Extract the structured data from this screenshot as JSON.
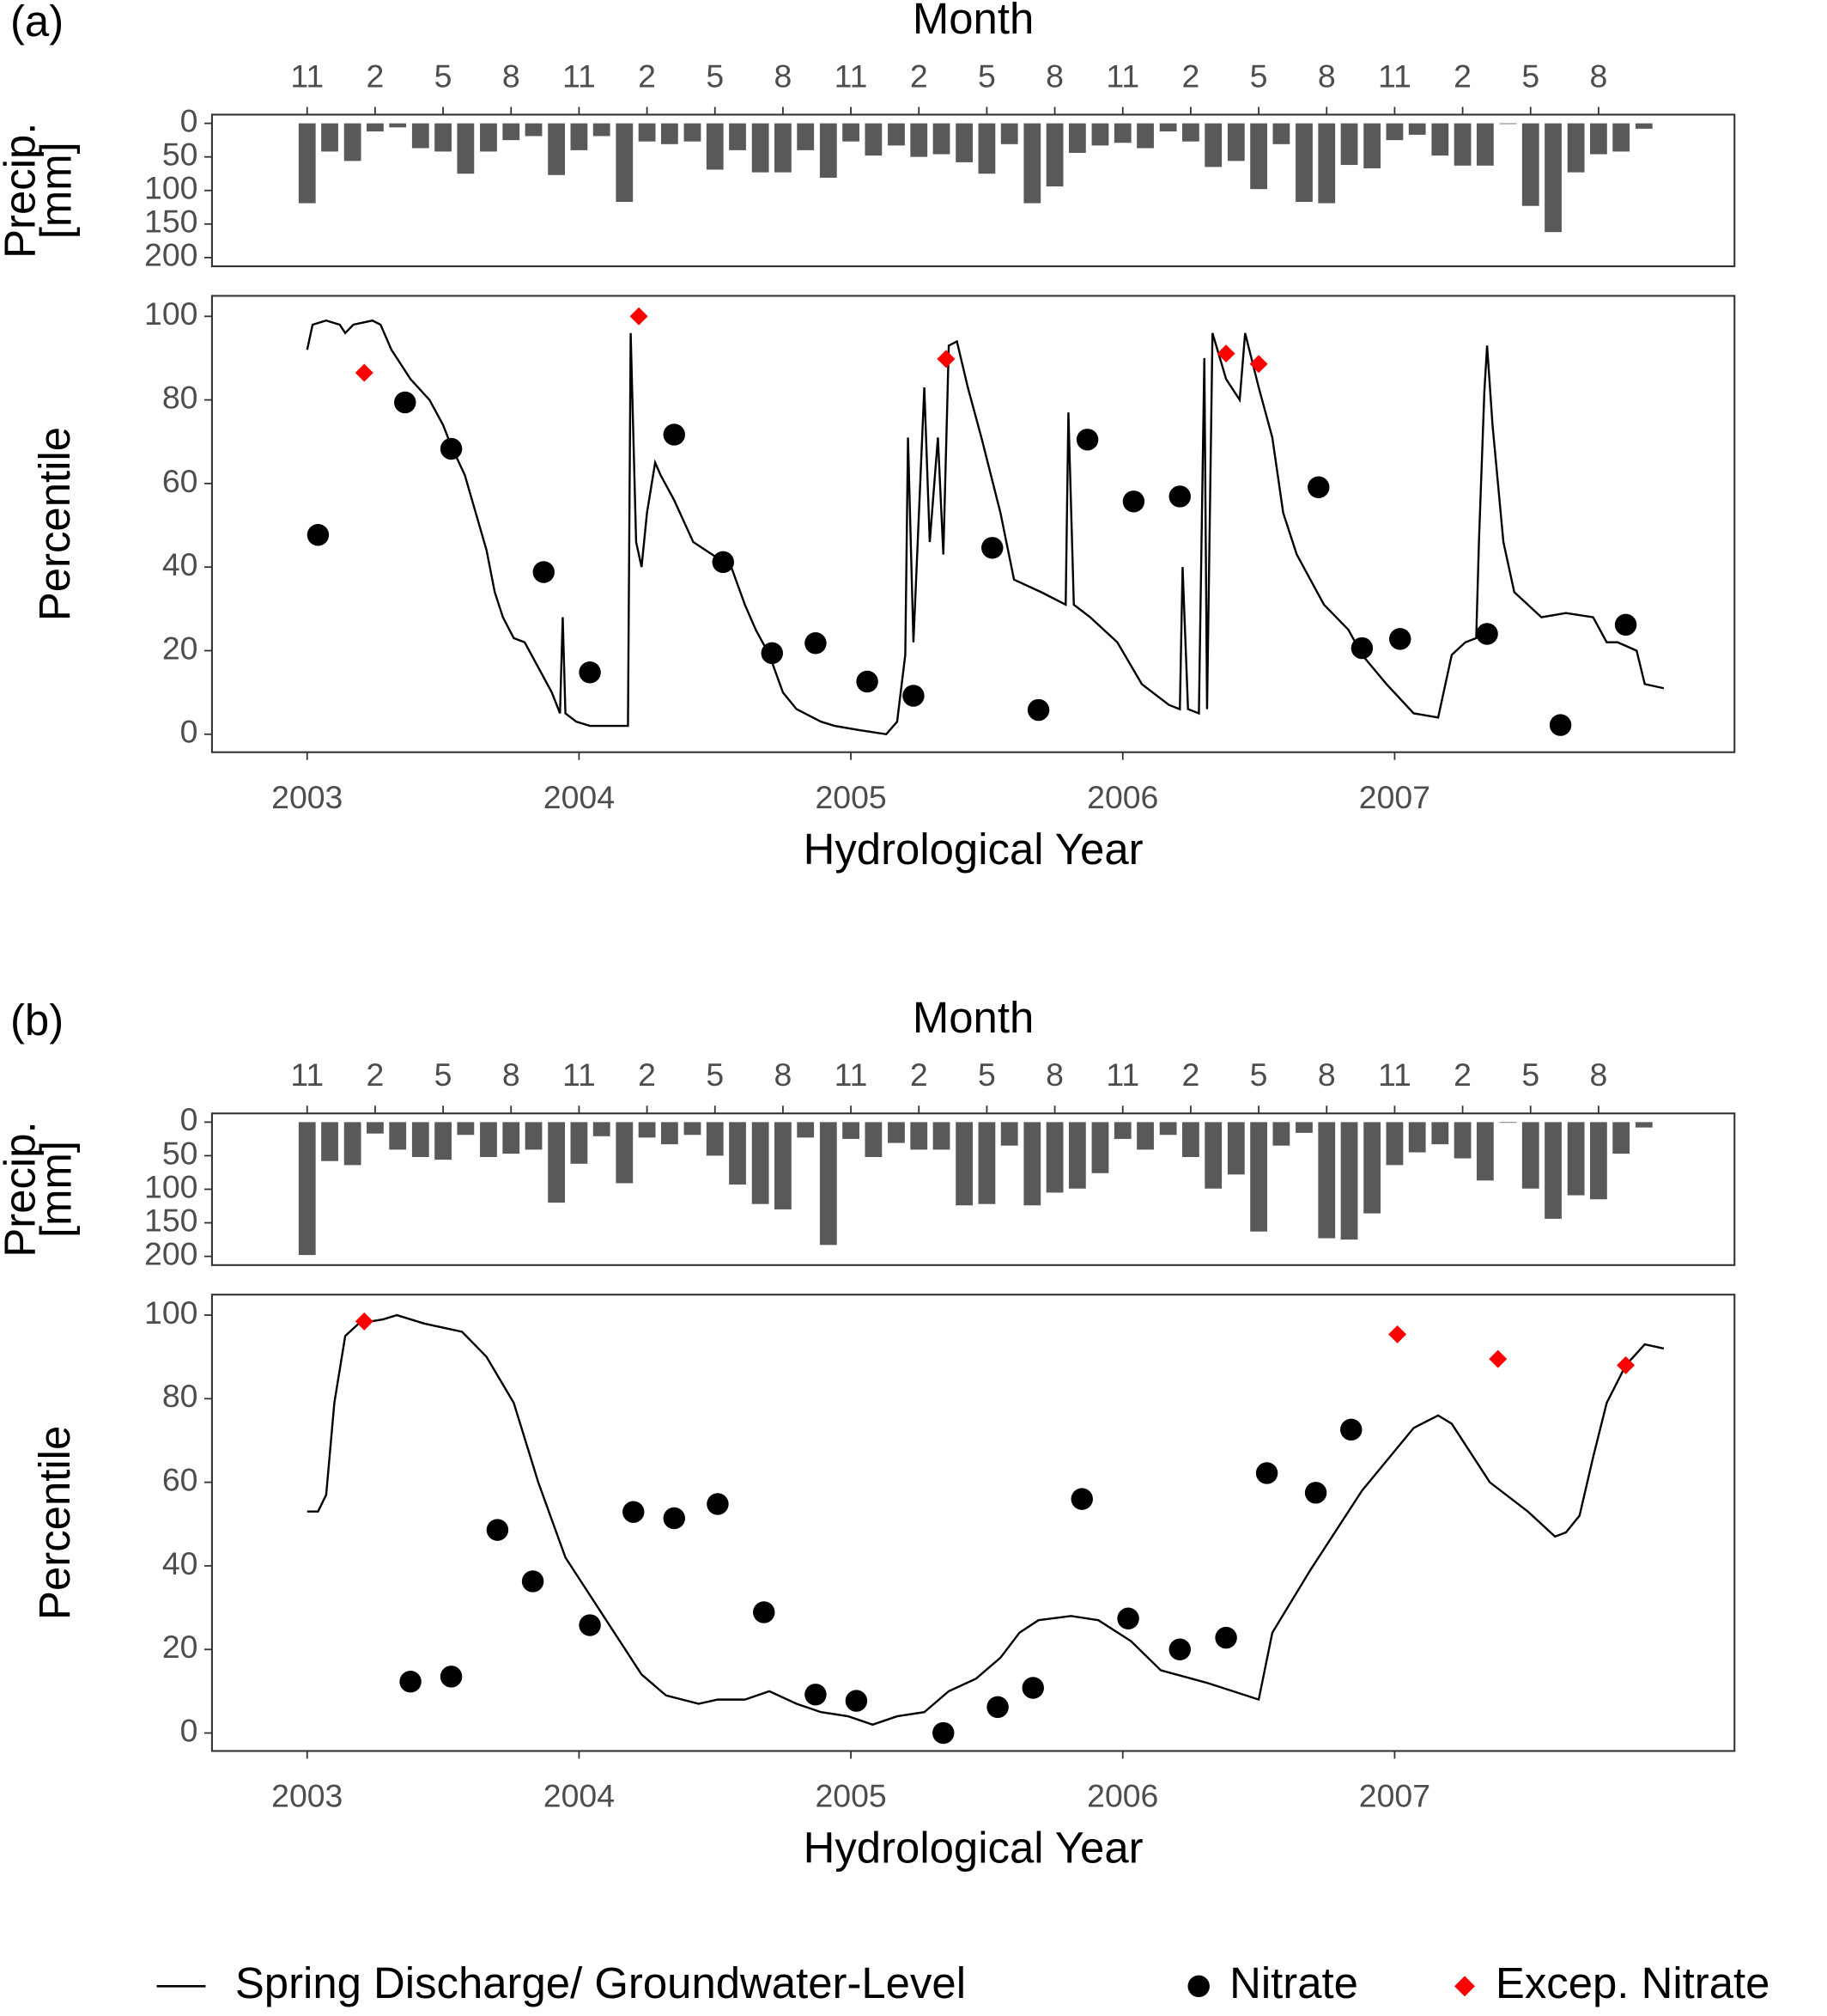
{
  "chart_data": [
    {
      "type": "bar",
      "panel": "(a)",
      "title": "Month",
      "ylabel": [
        "Precip.",
        "[mm]"
      ],
      "color": "#595959",
      "grid": false,
      "y_reversed": true,
      "xlim": [
        2002.65,
        2008.25
      ],
      "ylim": [
        -13,
        213
      ],
      "yticks": [
        0,
        50,
        100,
        150,
        200
      ],
      "xticks": [
        {
          "value": 2003,
          "label": "11"
        },
        {
          "value": 2003.25,
          "label": "2"
        },
        {
          "value": 2003.5,
          "label": "5"
        },
        {
          "value": 2003.75,
          "label": "8"
        },
        {
          "value": 2004,
          "label": "11"
        },
        {
          "value": 2004.25,
          "label": "2"
        },
        {
          "value": 2004.5,
          "label": "5"
        },
        {
          "value": 2004.75,
          "label": "8"
        },
        {
          "value": 2005,
          "label": "11"
        },
        {
          "value": 2005.25,
          "label": "2"
        },
        {
          "value": 2005.5,
          "label": "5"
        },
        {
          "value": 2005.75,
          "label": "8"
        },
        {
          "value": 2006,
          "label": "11"
        },
        {
          "value": 2006.25,
          "label": "2"
        },
        {
          "value": 2006.5,
          "label": "5"
        },
        {
          "value": 2006.75,
          "label": "8"
        },
        {
          "value": 2007,
          "label": "11"
        },
        {
          "value": 2007.25,
          "label": "2"
        },
        {
          "value": 2007.5,
          "label": "5"
        },
        {
          "value": 2007.75,
          "label": "8"
        }
      ],
      "x": [
        2003,
        2003.083,
        2003.167,
        2003.25,
        2003.333,
        2003.417,
        2003.5,
        2003.583,
        2003.667,
        2003.75,
        2003.833,
        2003.917,
        2004,
        2004.083,
        2004.167,
        2004.25,
        2004.333,
        2004.417,
        2004.5,
        2004.583,
        2004.667,
        2004.75,
        2004.833,
        2004.917,
        2005,
        2005.083,
        2005.167,
        2005.25,
        2005.333,
        2005.417,
        2005.5,
        2005.583,
        2005.667,
        2005.75,
        2005.833,
        2005.917,
        2006,
        2006.083,
        2006.167,
        2006.25,
        2006.333,
        2006.417,
        2006.5,
        2006.583,
        2006.667,
        2006.75,
        2006.833,
        2006.917,
        2007,
        2007.083,
        2007.167,
        2007.25,
        2007.333,
        2007.417,
        2007.5,
        2007.583,
        2007.667,
        2007.75,
        2007.833,
        2007.917
      ],
      "values": [
        119,
        42,
        56,
        12,
        6,
        37,
        42,
        75,
        42,
        25,
        19,
        77,
        40,
        19,
        117,
        27,
        31,
        27,
        69,
        40,
        73,
        73,
        40,
        81,
        27,
        48,
        33,
        50,
        46,
        58,
        75,
        31,
        119,
        94,
        44,
        33,
        29,
        37,
        12,
        27,
        65,
        56,
        98,
        31,
        117,
        119,
        62,
        67,
        25,
        17,
        48,
        63,
        63,
        1,
        123,
        162,
        73,
        46,
        42,
        8
      ]
    },
    {
      "type": "line",
      "xlabel": "Hydrological Year",
      "ylabel": "Percentile",
      "grid": false,
      "xlim": [
        2002.65,
        2008.25
      ],
      "ylim": [
        -4.3,
        104.9
      ],
      "yticks": [
        0,
        20,
        40,
        60,
        80,
        100
      ],
      "xticks": [
        2003,
        2004,
        2005,
        2006,
        2007
      ],
      "series": [
        {
          "name": "Spring Discharge/ Groundwater-Level",
          "type": "line",
          "color": "#000000",
          "x": [
            2003.0,
            2003.02,
            2003.07,
            2003.12,
            2003.14,
            2003.17,
            2003.24,
            2003.27,
            2003.31,
            2003.38,
            2003.45,
            2003.5,
            2003.53,
            2003.58,
            2003.62,
            2003.66,
            2003.69,
            2003.72,
            2003.76,
            2003.8,
            2003.85,
            2003.9,
            2003.93,
            2003.94,
            2003.95,
            2003.99,
            2004.04,
            2004.13,
            2004.18,
            2004.19,
            2004.21,
            2004.23,
            2004.25,
            2004.28,
            2004.3,
            2004.35,
            2004.42,
            2004.49,
            2004.56,
            2004.61,
            2004.65,
            2004.7,
            2004.75,
            2004.8,
            2004.89,
            2004.94,
            2005.03,
            2005.13,
            2005.17,
            2005.2,
            2005.21,
            2005.23,
            2005.27,
            2005.29,
            2005.32,
            2005.34,
            2005.36,
            2005.39,
            2005.43,
            2005.48,
            2005.55,
            2005.6,
            2005.7,
            2005.79,
            2005.8,
            2005.82,
            2005.88,
            2005.98,
            2006.07,
            2006.17,
            2006.21,
            2006.22,
            2006.24,
            2006.28,
            2006.3,
            2006.31,
            2006.33,
            2006.38,
            2006.43,
            2006.45,
            2006.5,
            2006.55,
            2006.59,
            2006.64,
            2006.74,
            2006.83,
            2006.88,
            2006.97,
            2007.07,
            2007.16,
            2007.18,
            2007.21,
            2007.26,
            2007.3,
            2007.31,
            2007.33,
            2007.34,
            2007.36,
            2007.4,
            2007.44,
            2007.49,
            2007.54,
            2007.63,
            2007.73,
            2007.78,
            2007.82,
            2007.89,
            2007.92,
            2007.99
          ],
          "values": [
            92,
            98,
            99,
            98,
            96,
            98,
            99,
            98,
            92,
            85,
            80,
            74,
            69,
            62,
            53,
            44,
            34,
            28,
            23,
            22,
            16,
            10,
            5,
            28,
            5,
            3,
            2,
            2,
            2,
            96,
            46,
            40,
            53,
            65,
            62,
            56,
            46,
            43,
            40,
            31,
            25,
            19,
            10,
            6,
            3,
            2,
            1,
            0,
            3,
            19,
            71,
            22,
            83,
            46,
            71,
            43,
            93,
            94,
            83,
            71,
            53,
            37,
            34,
            31,
            77,
            31,
            28,
            22,
            12,
            7,
            6,
            40,
            6,
            5,
            90,
            6,
            96,
            85,
            80,
            96,
            83,
            71,
            53,
            43,
            31,
            25,
            19,
            12,
            5,
            4,
            10,
            19,
            22,
            23,
            46,
            82,
            93,
            74,
            46,
            34,
            31,
            28,
            29,
            28,
            22,
            22,
            20,
            12,
            11
          ]
        },
        {
          "name": "Nitrate",
          "type": "scatter",
          "marker": "circle",
          "color": "#000000",
          "x": [
            2003.04,
            2003.36,
            2003.53,
            2003.87,
            2004.04,
            2004.35,
            2004.53,
            2004.71,
            2004.87,
            2005.06,
            2005.23,
            2005.52,
            2005.69,
            2005.87,
            2006.04,
            2006.21,
            2006.72,
            2006.88,
            2007.02,
            2007.34,
            2007.61,
            2007.85
          ],
          "values": [
            47.7,
            79.4,
            68.3,
            38.8,
            14.8,
            71.7,
            41.2,
            19.4,
            21.8,
            12.6,
            9.2,
            44.6,
            5.8,
            70.5,
            55.7,
            56.9,
            59.1,
            20.6,
            22.8,
            24.0,
            2.2,
            26.2
          ]
        },
        {
          "name": "Excep. Nitrate",
          "type": "scatter",
          "marker": "diamond",
          "color": "#ff0000",
          "x": [
            2003.21,
            2004.22,
            2005.35,
            2006.38,
            2006.5
          ],
          "values": [
            86.5,
            100,
            89.8,
            91.1,
            88.6
          ]
        }
      ]
    },
    {
      "type": "bar",
      "panel": "(b)",
      "title": "Month",
      "ylabel": [
        "Precip.",
        "[mm]"
      ],
      "color": "#595959",
      "grid": false,
      "y_reversed": true,
      "xlim": [
        2002.65,
        2008.25
      ],
      "ylim": [
        -13,
        213
      ],
      "yticks": [
        0,
        50,
        100,
        150,
        200
      ],
      "xticks": [
        {
          "value": 2003,
          "label": "11"
        },
        {
          "value": 2003.25,
          "label": "2"
        },
        {
          "value": 2003.5,
          "label": "5"
        },
        {
          "value": 2003.75,
          "label": "8"
        },
        {
          "value": 2004,
          "label": "11"
        },
        {
          "value": 2004.25,
          "label": "2"
        },
        {
          "value": 2004.5,
          "label": "5"
        },
        {
          "value": 2004.75,
          "label": "8"
        },
        {
          "value": 2005,
          "label": "11"
        },
        {
          "value": 2005.25,
          "label": "2"
        },
        {
          "value": 2005.5,
          "label": "5"
        },
        {
          "value": 2005.75,
          "label": "8"
        },
        {
          "value": 2006,
          "label": "11"
        },
        {
          "value": 2006.25,
          "label": "2"
        },
        {
          "value": 2006.5,
          "label": "5"
        },
        {
          "value": 2006.75,
          "label": "8"
        },
        {
          "value": 2007,
          "label": "11"
        },
        {
          "value": 2007.25,
          "label": "2"
        },
        {
          "value": 2007.5,
          "label": "5"
        },
        {
          "value": 2007.75,
          "label": "8"
        }
      ],
      "x": [
        2003,
        2003.083,
        2003.167,
        2003.25,
        2003.333,
        2003.417,
        2003.5,
        2003.583,
        2003.667,
        2003.75,
        2003.833,
        2003.917,
        2004,
        2004.083,
        2004.167,
        2004.25,
        2004.333,
        2004.417,
        2004.5,
        2004.583,
        2004.667,
        2004.75,
        2004.833,
        2004.917,
        2005,
        2005.083,
        2005.167,
        2005.25,
        2005.333,
        2005.417,
        2005.5,
        2005.583,
        2005.667,
        2005.75,
        2005.833,
        2005.917,
        2006,
        2006.083,
        2006.167,
        2006.25,
        2006.333,
        2006.417,
        2006.5,
        2006.583,
        2006.667,
        2006.75,
        2006.833,
        2006.917,
        2007,
        2007.083,
        2007.167,
        2007.25,
        2007.333,
        2007.417,
        2007.5,
        2007.583,
        2007.667,
        2007.75,
        2007.833,
        2007.917
      ],
      "values": [
        198,
        58,
        64,
        17,
        41,
        52,
        56,
        19,
        52,
        47,
        41,
        120,
        62,
        21,
        91,
        23,
        33,
        19,
        50,
        93,
        122,
        130,
        23,
        183,
        25,
        52,
        31,
        41,
        41,
        124,
        122,
        35,
        124,
        105,
        99,
        76,
        25,
        41,
        19,
        52,
        99,
        78,
        163,
        35,
        16,
        173,
        175,
        136,
        64,
        45,
        33,
        54,
        87,
        1,
        99,
        144,
        109,
        115,
        47,
        8
      ]
    },
    {
      "type": "line",
      "xlabel": "Hydrological Year",
      "ylabel": "Percentile",
      "grid": false,
      "xlim": [
        2002.65,
        2008.25
      ],
      "ylim": [
        -4.3,
        104.9
      ],
      "yticks": [
        0,
        20,
        40,
        60,
        80,
        100
      ],
      "xticks": [
        2003,
        2004,
        2005,
        2006,
        2007
      ],
      "series": [
        {
          "name": "Spring Discharge/ Groundwater-Level",
          "type": "line",
          "color": "#000000",
          "x": [
            2003.0,
            2003.04,
            2003.07,
            2003.1,
            2003.14,
            2003.19,
            2003.28,
            2003.33,
            2003.43,
            2003.57,
            2003.66,
            2003.76,
            2003.85,
            2003.95,
            2004.04,
            2004.13,
            2004.23,
            2004.32,
            2004.44,
            2004.51,
            2004.61,
            2004.7,
            2004.8,
            2004.89,
            2004.99,
            2005.08,
            2005.17,
            2005.27,
            2005.36,
            2005.46,
            2005.55,
            2005.62,
            2005.69,
            2005.81,
            2005.91,
            2006.03,
            2006.14,
            2006.31,
            2006.5,
            2006.55,
            2006.69,
            2006.88,
            2007.07,
            2007.16,
            2007.21,
            2007.3,
            2007.35,
            2007.49,
            2007.59,
            2007.63,
            2007.68,
            2007.73,
            2007.78,
            2007.85,
            2007.92,
            2007.99
          ],
          "values": [
            53,
            53,
            57,
            79,
            95,
            98,
            99,
            100,
            98,
            96,
            90,
            79,
            60,
            42,
            33,
            24,
            14,
            9,
            7,
            8,
            8,
            10,
            7,
            5,
            4,
            2,
            4,
            5,
            10,
            13,
            18,
            24,
            27,
            28,
            27,
            22,
            15,
            12,
            8,
            24,
            39,
            58,
            73,
            76,
            74,
            65,
            60,
            53,
            47,
            48,
            52,
            66,
            79,
            88,
            93,
            92
          ]
        },
        {
          "name": "Nitrate",
          "type": "scatter",
          "marker": "circle",
          "color": "#000000",
          "x": [
            2003.38,
            2003.53,
            2003.7,
            2003.83,
            2004.04,
            2004.2,
            2004.35,
            2004.51,
            2004.68,
            2004.87,
            2005.02,
            2005.34,
            2005.54,
            2005.67,
            2005.85,
            2006.02,
            2006.21,
            2006.38,
            2006.53,
            2006.71,
            2006.84
          ],
          "values": [
            12.3,
            13.5,
            48.6,
            36.3,
            25.8,
            52.9,
            51.4,
            54.8,
            28.9,
            9.2,
            7.7,
            0,
            6.2,
            10.8,
            56.0,
            27.4,
            20.0,
            22.8,
            62.2,
            57.5,
            72.6
          ]
        },
        {
          "name": "Excep. Nitrate",
          "type": "scatter",
          "marker": "diamond",
          "color": "#ff0000",
          "x": [
            2003.21,
            2007.01,
            2007.38,
            2007.85
          ],
          "values": [
            98.5,
            95.4,
            89.5,
            88.0
          ]
        }
      ]
    }
  ]
}
